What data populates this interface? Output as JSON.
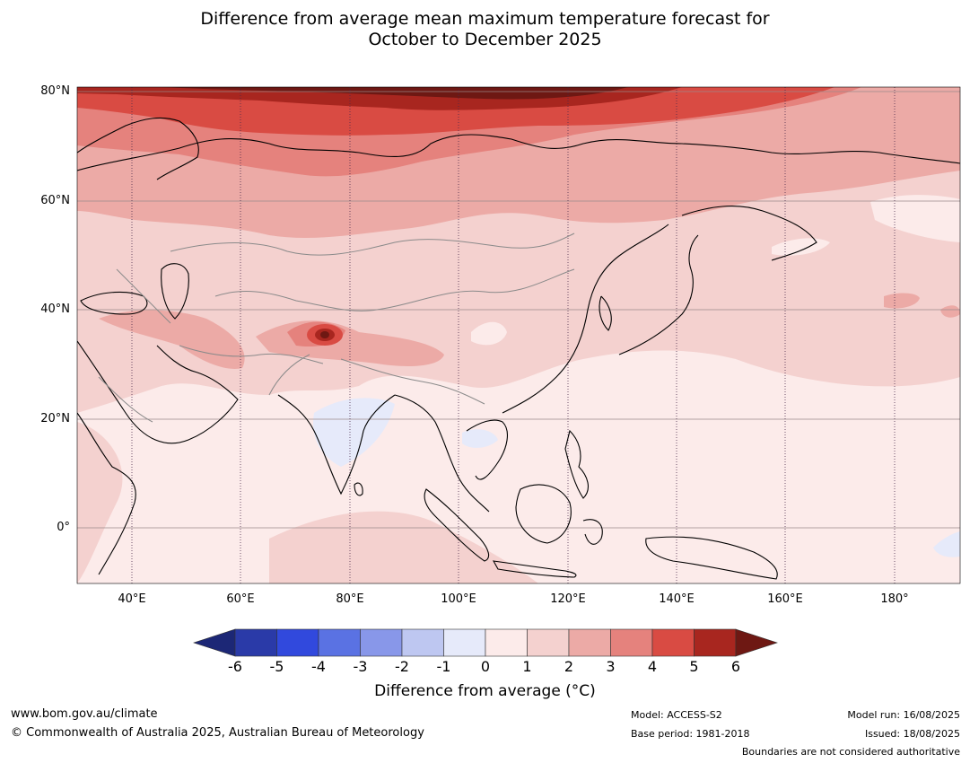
{
  "title": {
    "line1": "Difference from average mean maximum temperature forecast for",
    "line2": "October to December 2025"
  },
  "map": {
    "lat_labels": [
      "80°N",
      "60°N",
      "40°N",
      "20°N",
      "0°"
    ],
    "lon_labels": [
      "40°E",
      "60°E",
      "80°E",
      "100°E",
      "120°E",
      "140°E",
      "160°E",
      "180°"
    ],
    "lat_range": [
      -10,
      80
    ],
    "lon_range": [
      30,
      190
    ]
  },
  "colorbar": {
    "ticks": [
      "-6",
      "-5",
      "-4",
      "-3",
      "-2",
      "-1",
      "0",
      "1",
      "2",
      "3",
      "4",
      "5",
      "6"
    ],
    "colors": [
      "#2a3aa8",
      "#3149dd",
      "#5a72e3",
      "#8897e9",
      "#bec7f1",
      "#e6eafa",
      "#fcebea",
      "#f4d1cf",
      "#ecaaa6",
      "#e5827d",
      "#d94b43",
      "#a8261f"
    ],
    "low_extend_color": "#1c2776",
    "high_extend_color": "#6e1813",
    "label": "Difference from average (°C)"
  },
  "footer": {
    "website": "www.bom.gov.au/climate",
    "copyright": "© Commonwealth of Australia 2025, Australian Bureau of Meteorology",
    "model": "Model: ACCESS-S2",
    "base_period": "Base period: 1981-2018",
    "model_run": "Model run: 16/08/2025",
    "issued": "Issued: 18/08/2025",
    "disclaimer": "Boundaries are not considered authoritative"
  }
}
